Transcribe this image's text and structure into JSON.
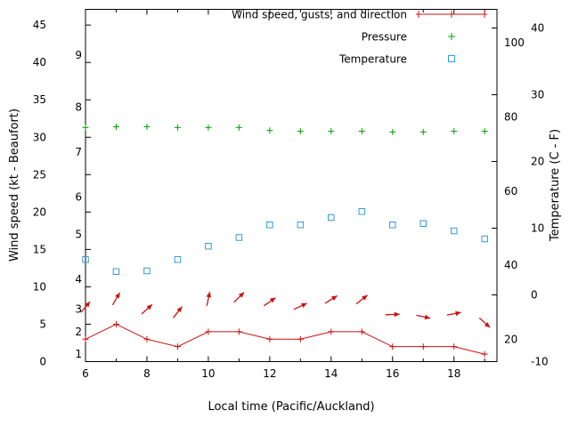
{
  "page": {
    "background": "#ffffff"
  },
  "chart_data": {
    "type": "line",
    "title": "",
    "xlabel": "Local time (Pacific/Auckland)",
    "x_range": [
      6,
      19.4
    ],
    "x_major_ticks": [
      6,
      8,
      10,
      12,
      14,
      16,
      18
    ],
    "x_minor_ticks": [
      7,
      9,
      11,
      13,
      15,
      17,
      19
    ],
    "left_axis": {
      "title": "Wind speed (kt - Beaufort)",
      "unit": "kt",
      "ticks": [
        0,
        5,
        10,
        15,
        20,
        25,
        30,
        35,
        40,
        45
      ],
      "range": [
        0,
        47.1
      ],
      "beaufort_labels": [
        {
          "label": "1",
          "kt": 1
        },
        {
          "label": "2",
          "kt": 4
        },
        {
          "label": "3",
          "kt": 7
        },
        {
          "label": "4",
          "kt": 11
        },
        {
          "label": "5",
          "kt": 17
        },
        {
          "label": "6",
          "kt": 22
        },
        {
          "label": "7",
          "kt": 28
        },
        {
          "label": "8",
          "kt": 34
        },
        {
          "label": "9",
          "kt": 41
        }
      ]
    },
    "right_axis": {
      "title": "Temperature (C - F)",
      "unit_outer": "C",
      "ticks_c": [
        -10,
        0,
        10,
        20,
        30,
        40
      ],
      "range_c": [
        -10,
        42.8
      ],
      "fahrenheit_labels": [
        20,
        40,
        60,
        80,
        100
      ]
    },
    "legend": [
      {
        "label": "Wind speed, gusts, and direction",
        "color": "#cc1111",
        "marker": "errorline"
      },
      {
        "label": "Pressure",
        "color": "#00a000",
        "marker": "plus"
      },
      {
        "label": "Temperature",
        "color": "#3399dd",
        "marker": "open-square"
      }
    ],
    "hours": [
      6,
      7,
      8,
      9,
      10,
      11,
      12,
      13,
      14,
      15,
      16,
      17,
      18,
      19
    ],
    "series": {
      "wind_speed_kt": [
        3,
        5,
        3,
        2,
        4,
        4,
        3,
        3,
        4,
        4,
        2,
        2,
        2,
        1
      ],
      "pressure_plot_kt": [
        31.3,
        31.4,
        31.4,
        31.3,
        31.3,
        31.3,
        30.9,
        30.8,
        30.8,
        30.8,
        30.7,
        30.7,
        30.8,
        30.8
      ],
      "pressure_note": "pressure series plotted with no visible numeric scale; values stored in left-axis units",
      "temperature_c": [
        5.3,
        3.5,
        3.6,
        5.3,
        7.3,
        8.6,
        10.5,
        10.5,
        11.6,
        12.5,
        10.5,
        10.7,
        9.6,
        8.4
      ],
      "wind_direction_arrows": [
        {
          "hour": 6,
          "angle_deg": 50,
          "kt": 7.3
        },
        {
          "hour": 7,
          "angle_deg": 60,
          "kt": 8.4
        },
        {
          "hour": 8,
          "angle_deg": 42,
          "kt": 7.0
        },
        {
          "hour": 9,
          "angle_deg": 52,
          "kt": 6.6
        },
        {
          "hour": 10,
          "angle_deg": 78,
          "kt": 8.4
        },
        {
          "hour": 11,
          "angle_deg": 45,
          "kt": 8.6
        },
        {
          "hour": 12,
          "angle_deg": 35,
          "kt": 8.0
        },
        {
          "hour": 13,
          "angle_deg": 25,
          "kt": 7.4
        },
        {
          "hour": 14,
          "angle_deg": 32,
          "kt": 8.3
        },
        {
          "hour": 15,
          "angle_deg": 38,
          "kt": 8.3
        },
        {
          "hour": 16,
          "angle_deg": 2,
          "kt": 6.3
        },
        {
          "hour": 17,
          "angle_deg": -12,
          "kt": 6.0
        },
        {
          "hour": 18,
          "angle_deg": 10,
          "kt": 6.4
        },
        {
          "hour": 19,
          "angle_deg": -42,
          "kt": 5.2
        }
      ]
    }
  }
}
